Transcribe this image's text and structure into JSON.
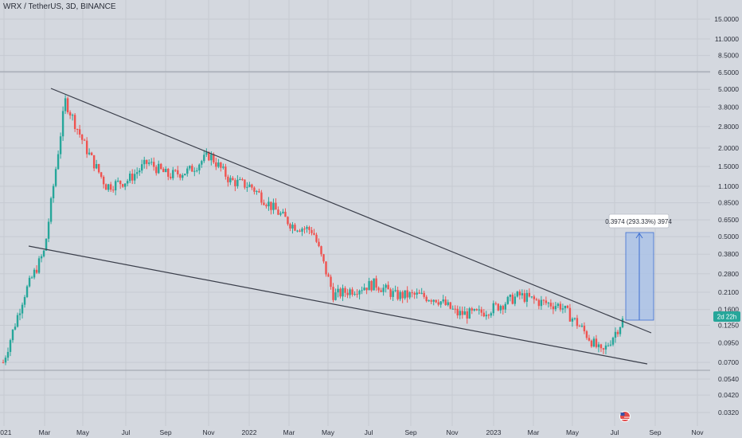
{
  "header": {
    "title": "WRX / TetherUS, 3D, BINANCE"
  },
  "current_badge": {
    "label": "2d 22h",
    "color": "#26a69a"
  },
  "measure_box": {
    "label": "0.3974 (293.33%) 3974",
    "fill": "#a7c0e8",
    "stroke": "#3d6fd1"
  },
  "colors": {
    "up": "#26a69a",
    "down": "#ef5350",
    "grid": "#c6cad2",
    "trendline": "#3a3e4a"
  },
  "flag_icon": "us-flag-icon",
  "chart_data": {
    "type": "candlestick",
    "scale": "log",
    "y_ticks": [
      "15.0000",
      "11.0000",
      "8.5000",
      "6.5000",
      "5.0000",
      "3.8000",
      "2.8000",
      "2.0000",
      "1.5000",
      "1.1000",
      "0.8500",
      "0.6500",
      "0.5000",
      "0.3800",
      "0.2800",
      "0.2100",
      "0.1600",
      "0.1250",
      "0.0950",
      "0.0700",
      "0.0540",
      "0.0420",
      "0.0320"
    ],
    "x_ticks": [
      "2021",
      "Mar",
      "May",
      "Jul",
      "Sep",
      "Nov",
      "2022",
      "Mar",
      "May",
      "Jul",
      "Sep",
      "Nov",
      "2023",
      "Mar",
      "May",
      "Jul",
      "Sep",
      "Nov"
    ],
    "series": [
      {
        "date": "2021-01",
        "close": 0.07
      },
      {
        "date": "2021-02",
        "close": 0.2
      },
      {
        "date": "2021-03",
        "close": 0.4
      },
      {
        "date": "2021-04",
        "close": 4.2
      },
      {
        "date": "2021-05",
        "close": 2.0
      },
      {
        "date": "2021-06",
        "close": 1.1
      },
      {
        "date": "2021-07",
        "close": 1.2
      },
      {
        "date": "2021-08",
        "close": 1.6
      },
      {
        "date": "2021-09",
        "close": 1.3
      },
      {
        "date": "2021-10",
        "close": 1.4
      },
      {
        "date": "2021-11",
        "close": 1.8
      },
      {
        "date": "2021-12",
        "close": 1.2
      },
      {
        "date": "2022-01",
        "close": 1.1
      },
      {
        "date": "2022-02",
        "close": 0.8
      },
      {
        "date": "2022-03",
        "close": 0.6
      },
      {
        "date": "2022-04",
        "close": 0.55
      },
      {
        "date": "2022-05",
        "close": 0.2
      },
      {
        "date": "2022-06",
        "close": 0.22
      },
      {
        "date": "2022-07",
        "close": 0.24
      },
      {
        "date": "2022-08",
        "close": 0.2
      },
      {
        "date": "2022-09",
        "close": 0.2
      },
      {
        "date": "2022-10",
        "close": 0.19
      },
      {
        "date": "2022-11",
        "close": 0.15
      },
      {
        "date": "2022-12",
        "close": 0.15
      },
      {
        "date": "2023-01",
        "close": 0.17
      },
      {
        "date": "2023-02",
        "close": 0.2
      },
      {
        "date": "2023-03",
        "close": 0.18
      },
      {
        "date": "2023-04",
        "close": 0.17
      },
      {
        "date": "2023-05",
        "close": 0.12
      },
      {
        "date": "2023-06",
        "close": 0.08
      },
      {
        "date": "2023-07",
        "close": 0.135
      }
    ]
  }
}
